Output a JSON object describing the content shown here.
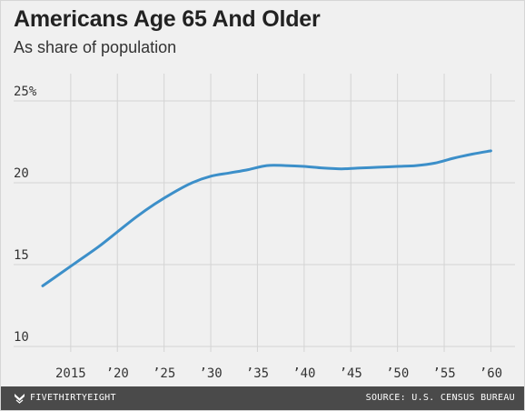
{
  "chart_data": {
    "type": "line",
    "title": "Americans Age 65 And Older",
    "subtitle": "As share of population",
    "xlabel": "",
    "ylabel": "",
    "x_ticks": [
      {
        "value": 2015,
        "label": "2015"
      },
      {
        "value": 2020,
        "label": "’20"
      },
      {
        "value": 2025,
        "label": "’25"
      },
      {
        "value": 2030,
        "label": "’30"
      },
      {
        "value": 2035,
        "label": "’35"
      },
      {
        "value": 2040,
        "label": "’40"
      },
      {
        "value": 2045,
        "label": "’45"
      },
      {
        "value": 2050,
        "label": "’50"
      },
      {
        "value": 2055,
        "label": "’55"
      },
      {
        "value": 2060,
        "label": "’60"
      }
    ],
    "y_ticks": [
      {
        "value": 10,
        "label": "10"
      },
      {
        "value": 15,
        "label": "15"
      },
      {
        "value": 20,
        "label": "20"
      },
      {
        "value": 25,
        "label": "25%"
      }
    ],
    "xlim": [
      2012,
      2062
    ],
    "ylim": [
      10,
      25
    ],
    "grid": true,
    "line_color": "#3c8fc9",
    "series": [
      {
        "x": [
          2012,
          2014,
          2016,
          2018,
          2020,
          2022,
          2024,
          2026,
          2028,
          2030,
          2032,
          2034,
          2036,
          2038,
          2040,
          2042,
          2044,
          2046,
          2048,
          2050,
          2052,
          2054,
          2056,
          2058,
          2060
        ],
        "values": [
          13.7,
          14.5,
          15.3,
          16.1,
          17.0,
          17.9,
          18.7,
          19.4,
          20.0,
          20.4,
          20.6,
          20.8,
          21.05,
          21.05,
          21.0,
          20.9,
          20.85,
          20.9,
          20.95,
          21.0,
          21.05,
          21.2,
          21.5,
          21.75,
          21.95
        ]
      }
    ]
  },
  "footer": {
    "brand": "FIVETHIRTYEIGHT",
    "source": "SOURCE: U.S. CENSUS BUREAU",
    "brand_icon": "fivethirtyeight-logo-icon"
  }
}
